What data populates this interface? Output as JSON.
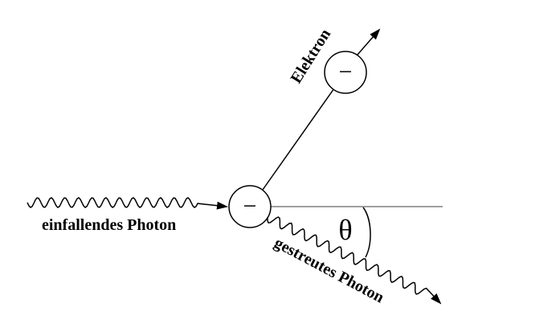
{
  "labels": {
    "incident": "einfallendes Photon",
    "scattered": "gestreutes Photon",
    "electron": "Elektron",
    "angle": "θ",
    "charge": "−"
  }
}
